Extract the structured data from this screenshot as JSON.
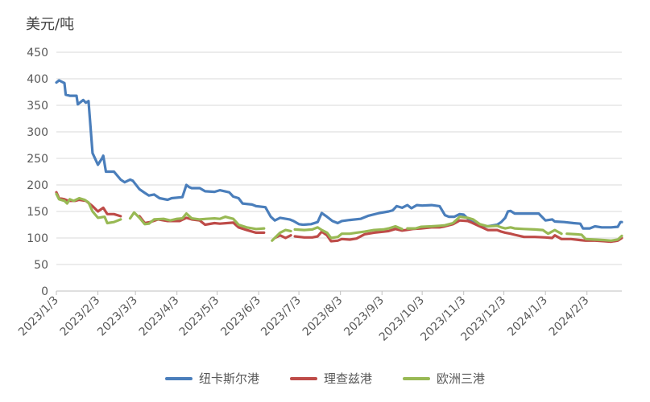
{
  "chart_data": {
    "type": "line",
    "title": "",
    "ylabel": "美元/吨",
    "xlabel": "",
    "ylim": [
      0,
      450
    ],
    "yticks": [
      0,
      50,
      100,
      150,
      200,
      250,
      300,
      350,
      400,
      450
    ],
    "xticks": [
      "2023/1/3",
      "2023/2/3",
      "2023/3/3",
      "2023/4/3",
      "2023/5/3",
      "2023/6/3",
      "2023/7/3",
      "2023/8/3",
      "2023/9/3",
      "2023/10/3",
      "2023/11/3",
      "2023/12/3",
      "2024/1/3",
      "2024/2/3"
    ],
    "x_range": [
      "2023-01-03",
      "2024-02-29"
    ],
    "grid": "horizontal",
    "legend_position": "bottom",
    "series": [
      {
        "name": "纽卡斯尔港",
        "color": "#4a7ebb",
        "points": [
          [
            "2023-01-03",
            393
          ],
          [
            "2023-01-05",
            397
          ],
          [
            "2023-01-09",
            392
          ],
          [
            "2023-01-10",
            370
          ],
          [
            "2023-01-13",
            368
          ],
          [
            "2023-01-18",
            368
          ],
          [
            "2023-01-19",
            352
          ],
          [
            "2023-01-23",
            360
          ],
          [
            "2023-01-25",
            355
          ],
          [
            "2023-01-27",
            358
          ],
          [
            "2023-01-30",
            260
          ],
          [
            "2023-02-03",
            238
          ],
          [
            "2023-02-06",
            250
          ],
          [
            "2023-02-07",
            255
          ],
          [
            "2023-02-09",
            225
          ],
          [
            "2023-02-15",
            225
          ],
          [
            "2023-02-20",
            210
          ],
          [
            "2023-02-23",
            205
          ],
          [
            "2023-02-27",
            210
          ],
          [
            "2023-03-01",
            208
          ],
          [
            "2023-03-06",
            192
          ],
          [
            "2023-03-10",
            185
          ],
          [
            "2023-03-13",
            180
          ],
          [
            "2023-03-17",
            182
          ],
          [
            "2023-03-21",
            175
          ],
          [
            "2023-03-27",
            172
          ],
          [
            "2023-03-30",
            175
          ],
          [
            "2023-04-07",
            177
          ],
          [
            "2023-04-10",
            200
          ],
          [
            "2023-04-12",
            196
          ],
          [
            "2023-04-14",
            194
          ],
          [
            "2023-04-20",
            194
          ],
          [
            "2023-04-24",
            188
          ],
          [
            "2023-05-01",
            187
          ],
          [
            "2023-05-05",
            190
          ],
          [
            "2023-05-12",
            186
          ],
          [
            "2023-05-15",
            178
          ],
          [
            "2023-05-19",
            175
          ],
          [
            "2023-05-22",
            165
          ],
          [
            "2023-05-29",
            163
          ],
          [
            "2023-06-01",
            160
          ],
          [
            "2023-06-08",
            158
          ],
          [
            "2023-06-12",
            140
          ],
          [
            "2023-06-15",
            133
          ],
          [
            "2023-06-19",
            138
          ],
          [
            "2023-06-26",
            135
          ],
          [
            "2023-06-29",
            132
          ],
          [
            "2023-07-03",
            126
          ],
          [
            "2023-07-06",
            125
          ],
          [
            "2023-07-12",
            126
          ],
          [
            "2023-07-17",
            130
          ],
          [
            "2023-07-20",
            147
          ],
          [
            "2023-07-24",
            140
          ],
          [
            "2023-07-28",
            132
          ],
          [
            "2023-08-01",
            128
          ],
          [
            "2023-08-04",
            132
          ],
          [
            "2023-08-10",
            134
          ],
          [
            "2023-08-18",
            136
          ],
          [
            "2023-08-24",
            142
          ],
          [
            "2023-09-01",
            147
          ],
          [
            "2023-09-08",
            150
          ],
          [
            "2023-09-11",
            152
          ],
          [
            "2023-09-14",
            160
          ],
          [
            "2023-09-18",
            157
          ],
          [
            "2023-09-22",
            162
          ],
          [
            "2023-09-25",
            156
          ],
          [
            "2023-09-29",
            162
          ],
          [
            "2023-10-03",
            161
          ],
          [
            "2023-10-10",
            162
          ],
          [
            "2023-10-16",
            160
          ],
          [
            "2023-10-20",
            143
          ],
          [
            "2023-10-23",
            140
          ],
          [
            "2023-10-27",
            140
          ],
          [
            "2023-10-31",
            145
          ],
          [
            "2023-11-03",
            144
          ],
          [
            "2023-11-08",
            132
          ],
          [
            "2023-11-15",
            124
          ],
          [
            "2023-11-21",
            122
          ],
          [
            "2023-11-28",
            125
          ],
          [
            "2023-12-01",
            130
          ],
          [
            "2023-12-04",
            138
          ],
          [
            "2023-12-06",
            150
          ],
          [
            "2023-12-08",
            151
          ],
          [
            "2023-12-11",
            146
          ],
          [
            "2023-12-18",
            146
          ],
          [
            "2023-12-25",
            146
          ],
          [
            "2023-12-29",
            146
          ],
          [
            "2024-01-03",
            133
          ],
          [
            "2024-01-08",
            135
          ],
          [
            "2024-01-10",
            131
          ],
          [
            "2024-01-17",
            130
          ],
          [
            "2024-01-24",
            128
          ],
          [
            "2024-01-29",
            127
          ],
          [
            "2024-01-31",
            118
          ],
          [
            "2024-02-05",
            118
          ],
          [
            "2024-02-09",
            122
          ],
          [
            "2024-02-14",
            120
          ],
          [
            "2024-02-21",
            120
          ],
          [
            "2024-02-26",
            121
          ],
          [
            "2024-02-28",
            130
          ],
          [
            "2024-02-29",
            130
          ]
        ]
      },
      {
        "name": "理查兹港",
        "color": "#be4b48",
        "points": [
          [
            "2023-01-03",
            186
          ],
          [
            "2023-01-05",
            175
          ],
          [
            "2023-01-09",
            173
          ],
          [
            "2023-01-12",
            170
          ],
          [
            "2023-01-17",
            170
          ],
          [
            "2023-01-20",
            172
          ],
          [
            "2023-01-25",
            170
          ],
          [
            "2023-01-30",
            160
          ],
          [
            "2023-02-03",
            150
          ],
          [
            "2023-02-07",
            157
          ],
          [
            "2023-02-10",
            145
          ],
          [
            "2023-02-15",
            145
          ],
          [
            "2023-02-20",
            141
          ],
          null,
          [
            "2023-03-06",
            141
          ],
          [
            "2023-03-10",
            128
          ],
          [
            "2023-03-14",
            130
          ],
          [
            "2023-03-20",
            135
          ],
          [
            "2023-03-27",
            132
          ],
          [
            "2023-04-05",
            132
          ],
          [
            "2023-04-10",
            138
          ],
          [
            "2023-04-14",
            135
          ],
          [
            "2023-04-20",
            133
          ],
          [
            "2023-04-24",
            125
          ],
          [
            "2023-05-01",
            128
          ],
          [
            "2023-05-05",
            127
          ],
          [
            "2023-05-15",
            129
          ],
          [
            "2023-05-19",
            120
          ],
          [
            "2023-05-25",
            115
          ],
          [
            "2023-06-01",
            110
          ],
          [
            "2023-06-07",
            110
          ],
          null,
          [
            "2023-06-15",
            100
          ],
          [
            "2023-06-19",
            105
          ],
          [
            "2023-06-23",
            100
          ],
          [
            "2023-06-27",
            105
          ],
          null,
          [
            "2023-06-30",
            103
          ],
          [
            "2023-07-07",
            101
          ],
          [
            "2023-07-13",
            101
          ],
          [
            "2023-07-17",
            103
          ],
          [
            "2023-07-20",
            112
          ],
          [
            "2023-07-24",
            105
          ],
          [
            "2023-07-27",
            94
          ],
          [
            "2023-08-01",
            95
          ],
          [
            "2023-08-04",
            98
          ],
          [
            "2023-08-10",
            97
          ],
          [
            "2023-08-15",
            99
          ],
          [
            "2023-08-21",
            107
          ],
          [
            "2023-08-28",
            110
          ],
          [
            "2023-09-04",
            112
          ],
          [
            "2023-09-08",
            113
          ],
          [
            "2023-09-13",
            117
          ],
          [
            "2023-09-18",
            114
          ],
          [
            "2023-09-26",
            117
          ],
          [
            "2023-10-02",
            118
          ],
          [
            "2023-10-10",
            120
          ],
          [
            "2023-10-16",
            120
          ],
          [
            "2023-10-20",
            122
          ],
          [
            "2023-10-26",
            126
          ],
          [
            "2023-10-31",
            133
          ],
          [
            "2023-11-06",
            132
          ],
          [
            "2023-11-09",
            129
          ],
          [
            "2023-11-15",
            122
          ],
          [
            "2023-11-21",
            115
          ],
          [
            "2023-11-28",
            115
          ],
          [
            "2023-12-01",
            112
          ],
          [
            "2023-12-04",
            110
          ],
          [
            "2023-12-08",
            108
          ],
          [
            "2023-12-11",
            106
          ],
          [
            "2023-12-18",
            102
          ],
          [
            "2023-12-26",
            102
          ],
          [
            "2024-01-03",
            101
          ],
          [
            "2024-01-08",
            100
          ],
          [
            "2024-01-10",
            105
          ],
          [
            "2024-01-15",
            98
          ],
          [
            "2024-01-22",
            98
          ],
          [
            "2024-01-29",
            96
          ],
          [
            "2024-02-02",
            95
          ],
          [
            "2024-02-09",
            95
          ],
          [
            "2024-02-16",
            94
          ],
          [
            "2024-02-21",
            93
          ],
          [
            "2024-02-26",
            95
          ],
          [
            "2024-02-29",
            100
          ]
        ]
      },
      {
        "name": "欧洲三港",
        "color": "#98b954",
        "points": [
          [
            "2023-01-03",
            183
          ],
          [
            "2023-01-05",
            173
          ],
          [
            "2023-01-09",
            170
          ],
          [
            "2023-01-11",
            165
          ],
          [
            "2023-01-13",
            173
          ],
          [
            "2023-01-16",
            170
          ],
          [
            "2023-01-20",
            175
          ],
          [
            "2023-01-24",
            172
          ],
          [
            "2023-01-27",
            167
          ],
          [
            "2023-01-30",
            150
          ],
          [
            "2023-02-03",
            138
          ],
          [
            "2023-02-08",
            140
          ],
          [
            "2023-02-10",
            128
          ],
          [
            "2023-02-15",
            130
          ],
          [
            "2023-02-20",
            135
          ],
          null,
          [
            "2023-02-27",
            137
          ],
          [
            "2023-03-02",
            148
          ],
          [
            "2023-03-06",
            138
          ],
          [
            "2023-03-10",
            126
          ],
          [
            "2023-03-13",
            127
          ],
          [
            "2023-03-17",
            135
          ],
          [
            "2023-03-24",
            136
          ],
          [
            "2023-03-29",
            133
          ],
          [
            "2023-04-03",
            136
          ],
          [
            "2023-04-07",
            137
          ],
          [
            "2023-04-10",
            146
          ],
          [
            "2023-04-14",
            137
          ],
          [
            "2023-04-20",
            135
          ],
          [
            "2023-04-25",
            136
          ],
          [
            "2023-05-01",
            137
          ],
          [
            "2023-05-05",
            136
          ],
          [
            "2023-05-09",
            140
          ],
          [
            "2023-05-15",
            136
          ],
          [
            "2023-05-19",
            125
          ],
          [
            "2023-05-25",
            120
          ],
          [
            "2023-06-01",
            117
          ],
          [
            "2023-06-07",
            118
          ],
          null,
          [
            "2023-06-13",
            95
          ],
          [
            "2023-06-19",
            110
          ],
          [
            "2023-06-23",
            115
          ],
          [
            "2023-06-27",
            113
          ],
          null,
          [
            "2023-06-30",
            116
          ],
          [
            "2023-07-07",
            115
          ],
          [
            "2023-07-13",
            116
          ],
          [
            "2023-07-17",
            120
          ],
          [
            "2023-07-20",
            115
          ],
          [
            "2023-07-24",
            110
          ],
          [
            "2023-07-27",
            100
          ],
          [
            "2023-08-01",
            102
          ],
          [
            "2023-08-04",
            108
          ],
          [
            "2023-08-10",
            108
          ],
          [
            "2023-08-15",
            110
          ],
          [
            "2023-08-21",
            112
          ],
          [
            "2023-08-28",
            115
          ],
          [
            "2023-09-04",
            116
          ],
          [
            "2023-09-08",
            118
          ],
          [
            "2023-09-13",
            122
          ],
          [
            "2023-09-18",
            117
          ],
          null,
          [
            "2023-09-22",
            118
          ],
          [
            "2023-09-28",
            118
          ],
          [
            "2023-10-02",
            121
          ],
          [
            "2023-10-10",
            122
          ],
          [
            "2023-10-16",
            123
          ],
          [
            "2023-10-20",
            124
          ],
          [
            "2023-10-26",
            128
          ],
          [
            "2023-10-31",
            140
          ],
          [
            "2023-11-06",
            138
          ],
          [
            "2023-11-10",
            135
          ],
          [
            "2023-11-15",
            126
          ],
          [
            "2023-11-21",
            122
          ],
          [
            "2023-11-28",
            123
          ],
          [
            "2023-12-01",
            120
          ],
          [
            "2023-12-04",
            118
          ],
          [
            "2023-12-08",
            120
          ],
          [
            "2023-12-11",
            118
          ],
          [
            "2023-12-18",
            117
          ],
          [
            "2023-12-26",
            116
          ],
          [
            "2024-01-01",
            115
          ],
          [
            "2024-01-05",
            108
          ],
          [
            "2024-01-10",
            115
          ],
          [
            "2024-01-15",
            108
          ],
          null,
          [
            "2024-01-19",
            108
          ],
          [
            "2024-01-26",
            107
          ],
          [
            "2024-01-30",
            106
          ],
          [
            "2024-02-02",
            98
          ],
          [
            "2024-02-09",
            97
          ],
          [
            "2024-02-16",
            96
          ],
          [
            "2024-02-21",
            95
          ],
          [
            "2024-02-26",
            97
          ],
          [
            "2024-02-29",
            104
          ]
        ]
      }
    ]
  }
}
